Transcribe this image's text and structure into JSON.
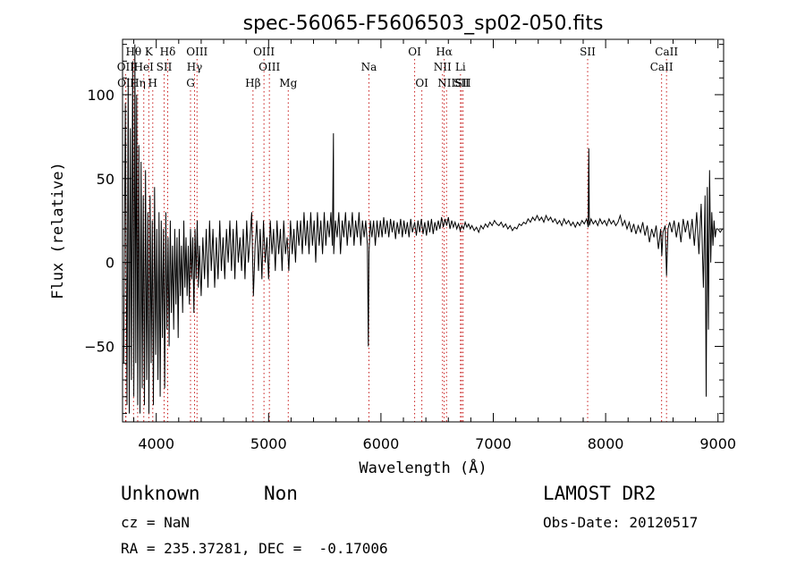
{
  "chart_data": {
    "type": "line",
    "title": "spec-56065-F5606503_sp02-050.fits",
    "xlabel": "Wavelength (Å)",
    "ylabel": "Flux (relative)",
    "xlim": [
      3700,
      9050
    ],
    "ylim": [
      -95,
      133
    ],
    "xticks": [
      4000,
      5000,
      6000,
      7000,
      8000,
      9000
    ],
    "yticks": [
      -50,
      0,
      50,
      100
    ],
    "grid": false,
    "line_color": "#000000",
    "marker_color": "#c81e1e",
    "lines": [
      {
        "label": "Hθ",
        "wavelength": 3798,
        "row": 0
      },
      {
        "label": "K",
        "wavelength": 3934,
        "row": 0
      },
      {
        "label": "Hδ",
        "wavelength": 4102,
        "row": 0
      },
      {
        "label": "OIII",
        "wavelength": 4363,
        "row": 0
      },
      {
        "label": "OIII",
        "wavelength": 4959,
        "row": 0
      },
      {
        "label": "OI",
        "wavelength": 6300,
        "row": 0
      },
      {
        "label": "Hα",
        "wavelength": 6563,
        "row": 0
      },
      {
        "label": "SII",
        "wavelength": 7840,
        "row": 0
      },
      {
        "label": "CaII",
        "wavelength": 8542,
        "row": 0
      },
      {
        "label": "OII",
        "wavelength": 3727,
        "row": 1
      },
      {
        "label": "HeI",
        "wavelength": 3889,
        "row": 1
      },
      {
        "label": "SII",
        "wavelength": 4070,
        "row": 1
      },
      {
        "label": "Hγ",
        "wavelength": 4341,
        "row": 1
      },
      {
        "label": "OIII",
        "wavelength": 5007,
        "row": 1
      },
      {
        "label": "Na",
        "wavelength": 5893,
        "row": 1
      },
      {
        "label": "NII",
        "wavelength": 6548,
        "row": 1
      },
      {
        "label": "Li",
        "wavelength": 6708,
        "row": 1
      },
      {
        "label": "CaII",
        "wavelength": 8498,
        "row": 1
      },
      {
        "label": "OII",
        "wavelength": 3730,
        "row": 2
      },
      {
        "label": "Hη",
        "wavelength": 3835,
        "row": 2
      },
      {
        "label": "H",
        "wavelength": 3969,
        "row": 2
      },
      {
        "label": "G",
        "wavelength": 4305,
        "row": 2
      },
      {
        "label": "Hβ",
        "wavelength": 4861,
        "row": 2
      },
      {
        "label": "Mg",
        "wavelength": 5175,
        "row": 2
      },
      {
        "label": "OI",
        "wavelength": 6364,
        "row": 2
      },
      {
        "label": "NII",
        "wavelength": 6584,
        "row": 2
      },
      {
        "label": "SII",
        "wavelength": 6717,
        "row": 2
      },
      {
        "label": "SII",
        "wavelength": 6731,
        "row": 2
      }
    ],
    "spectrum": [
      [
        3710,
        -60
      ],
      [
        3725,
        95
      ],
      [
        3740,
        -85
      ],
      [
        3750,
        110
      ],
      [
        3760,
        -90
      ],
      [
        3770,
        80
      ],
      [
        3780,
        -70
      ],
      [
        3790,
        120
      ],
      [
        3800,
        -80
      ],
      [
        3810,
        130
      ],
      [
        3818,
        -60
      ],
      [
        3826,
        100
      ],
      [
        3835,
        -85
      ],
      [
        3845,
        70
      ],
      [
        3855,
        -90
      ],
      [
        3865,
        60
      ],
      [
        3875,
        -75
      ],
      [
        3885,
        40
      ],
      [
        3895,
        -85
      ],
      [
        3905,
        55
      ],
      [
        3915,
        -70
      ],
      [
        3925,
        30
      ],
      [
        3935,
        -90
      ],
      [
        3945,
        40
      ],
      [
        3955,
        -60
      ],
      [
        3965,
        25
      ],
      [
        3975,
        -85
      ],
      [
        3985,
        45
      ],
      [
        3995,
        -55
      ],
      [
        4005,
        20
      ],
      [
        4015,
        -70
      ],
      [
        4025,
        30
      ],
      [
        4035,
        -80
      ],
      [
        4045,
        25
      ],
      [
        4055,
        -45
      ],
      [
        4065,
        20
      ],
      [
        4075,
        -75
      ],
      [
        4085,
        30
      ],
      [
        4095,
        -40
      ],
      [
        4105,
        15
      ],
      [
        4115,
        -50
      ],
      [
        4125,
        25
      ],
      [
        4135,
        -30
      ],
      [
        4145,
        10
      ],
      [
        4155,
        -40
      ],
      [
        4165,
        20
      ],
      [
        4175,
        -25
      ],
      [
        4185,
        15
      ],
      [
        4195,
        -45
      ],
      [
        4205,
        20
      ],
      [
        4215,
        -20
      ],
      [
        4225,
        10
      ],
      [
        4235,
        -30
      ],
      [
        4245,
        25
      ],
      [
        4255,
        -15
      ],
      [
        4265,
        15
      ],
      [
        4275,
        -20
      ],
      [
        4285,
        10
      ],
      [
        4295,
        -25
      ],
      [
        4305,
        20
      ],
      [
        4315,
        -10
      ],
      [
        4325,
        15
      ],
      [
        4335,
        -30
      ],
      [
        4345,
        20
      ],
      [
        4355,
        -10
      ],
      [
        4365,
        25
      ],
      [
        4375,
        -15
      ],
      [
        4385,
        10
      ],
      [
        4400,
        -20
      ],
      [
        4415,
        15
      ],
      [
        4430,
        -10
      ],
      [
        4445,
        20
      ],
      [
        4460,
        -15
      ],
      [
        4475,
        25
      ],
      [
        4490,
        -5
      ],
      [
        4505,
        20
      ],
      [
        4520,
        -15
      ],
      [
        4535,
        15
      ],
      [
        4550,
        -10
      ],
      [
        4565,
        25
      ],
      [
        4580,
        -5
      ],
      [
        4595,
        15
      ],
      [
        4610,
        -10
      ],
      [
        4625,
        20
      ],
      [
        4640,
        0
      ],
      [
        4655,
        25
      ],
      [
        4670,
        -5
      ],
      [
        4685,
        20
      ],
      [
        4700,
        -10
      ],
      [
        4715,
        25
      ],
      [
        4730,
        0
      ],
      [
        4745,
        15
      ],
      [
        4760,
        -5
      ],
      [
        4775,
        20
      ],
      [
        4790,
        -10
      ],
      [
        4805,
        25
      ],
      [
        4820,
        0
      ],
      [
        4835,
        15
      ],
      [
        4850,
        30
      ],
      [
        4865,
        -20
      ],
      [
        4880,
        10
      ],
      [
        4895,
        25
      ],
      [
        4910,
        -5
      ],
      [
        4925,
        20
      ],
      [
        4940,
        -10
      ],
      [
        4955,
        25
      ],
      [
        4970,
        0
      ],
      [
        4985,
        15
      ],
      [
        5000,
        -10
      ],
      [
        5015,
        25
      ],
      [
        5030,
        5
      ],
      [
        5045,
        20
      ],
      [
        5060,
        -5
      ],
      [
        5075,
        25
      ],
      [
        5090,
        5
      ],
      [
        5105,
        20
      ],
      [
        5120,
        -5
      ],
      [
        5135,
        25
      ],
      [
        5150,
        5
      ],
      [
        5165,
        15
      ],
      [
        5180,
        -5
      ],
      [
        5195,
        25
      ],
      [
        5210,
        5
      ],
      [
        5225,
        20
      ],
      [
        5240,
        0
      ],
      [
        5255,
        25
      ],
      [
        5270,
        10
      ],
      [
        5285,
        25
      ],
      [
        5300,
        5
      ],
      [
        5315,
        30
      ],
      [
        5330,
        10
      ],
      [
        5345,
        25
      ],
      [
        5360,
        5
      ],
      [
        5375,
        30
      ],
      [
        5390,
        10
      ],
      [
        5405,
        25
      ],
      [
        5420,
        0
      ],
      [
        5435,
        30
      ],
      [
        5450,
        10
      ],
      [
        5465,
        25
      ],
      [
        5480,
        5
      ],
      [
        5495,
        30
      ],
      [
        5510,
        10
      ],
      [
        5525,
        25
      ],
      [
        5540,
        15
      ],
      [
        5555,
        30
      ],
      [
        5568,
        10
      ],
      [
        5577,
        77
      ],
      [
        5580,
        5
      ],
      [
        5595,
        25
      ],
      [
        5610,
        15
      ],
      [
        5625,
        30
      ],
      [
        5640,
        5
      ],
      [
        5655,
        25
      ],
      [
        5670,
        15
      ],
      [
        5685,
        30
      ],
      [
        5700,
        10
      ],
      [
        5715,
        25
      ],
      [
        5730,
        15
      ],
      [
        5745,
        30
      ],
      [
        5760,
        10
      ],
      [
        5775,
        25
      ],
      [
        5790,
        15
      ],
      [
        5805,
        30
      ],
      [
        5820,
        10
      ],
      [
        5835,
        25
      ],
      [
        5850,
        15
      ],
      [
        5865,
        25
      ],
      [
        5880,
        10
      ],
      [
        5888,
        -50
      ],
      [
        5893,
        5
      ],
      [
        5905,
        25
      ],
      [
        5920,
        15
      ],
      [
        5935,
        25
      ],
      [
        5950,
        10
      ],
      [
        5965,
        25
      ],
      [
        5980,
        15
      ],
      [
        5995,
        25
      ],
      [
        6010,
        15
      ],
      [
        6025,
        27
      ],
      [
        6040,
        17
      ],
      [
        6055,
        25
      ],
      [
        6070,
        15
      ],
      [
        6085,
        26
      ],
      [
        6100,
        18
      ],
      [
        6115,
        25
      ],
      [
        6130,
        14
      ],
      [
        6145,
        24
      ],
      [
        6160,
        17
      ],
      [
        6175,
        26
      ],
      [
        6190,
        15
      ],
      [
        6205,
        25
      ],
      [
        6220,
        17
      ],
      [
        6235,
        24
      ],
      [
        6250,
        15
      ],
      [
        6265,
        26
      ],
      [
        6280,
        18
      ],
      [
        6300,
        24
      ],
      [
        6315,
        16
      ],
      [
        6330,
        25
      ],
      [
        6345,
        18
      ],
      [
        6360,
        26
      ],
      [
        6375,
        17
      ],
      [
        6390,
        24
      ],
      [
        6405,
        16
      ],
      [
        6420,
        25
      ],
      [
        6435,
        18
      ],
      [
        6450,
        26
      ],
      [
        6465,
        17
      ],
      [
        6480,
        24
      ],
      [
        6495,
        19
      ],
      [
        6510,
        25
      ],
      [
        6525,
        20
      ],
      [
        6540,
        27
      ],
      [
        6555,
        21
      ],
      [
        6570,
        26
      ],
      [
        6585,
        22
      ],
      [
        6600,
        27
      ],
      [
        6615,
        20
      ],
      [
        6630,
        25
      ],
      [
        6645,
        21
      ],
      [
        6660,
        24
      ],
      [
        6675,
        20
      ],
      [
        6690,
        23
      ],
      [
        6705,
        19
      ],
      [
        6720,
        22
      ],
      [
        6735,
        20
      ],
      [
        6750,
        24
      ],
      [
        6765,
        21
      ],
      [
        6780,
        23
      ],
      [
        6795,
        20
      ],
      [
        6810,
        22
      ],
      [
        6830,
        19
      ],
      [
        6850,
        21
      ],
      [
        6870,
        18
      ],
      [
        6890,
        22
      ],
      [
        6910,
        20
      ],
      [
        6930,
        23
      ],
      [
        6950,
        21
      ],
      [
        6970,
        24
      ],
      [
        6990,
        22
      ],
      [
        7010,
        25
      ],
      [
        7030,
        23
      ],
      [
        7050,
        22
      ],
      [
        7070,
        24
      ],
      [
        7090,
        21
      ],
      [
        7110,
        23
      ],
      [
        7130,
        20
      ],
      [
        7150,
        22
      ],
      [
        7170,
        19
      ],
      [
        7190,
        21
      ],
      [
        7210,
        20
      ],
      [
        7230,
        23
      ],
      [
        7250,
        22
      ],
      [
        7270,
        24
      ],
      [
        7290,
        23
      ],
      [
        7310,
        26
      ],
      [
        7330,
        24
      ],
      [
        7350,
        27
      ],
      [
        7370,
        25
      ],
      [
        7390,
        28
      ],
      [
        7410,
        25
      ],
      [
        7430,
        27
      ],
      [
        7450,
        24
      ],
      [
        7470,
        28
      ],
      [
        7490,
        25
      ],
      [
        7510,
        27
      ],
      [
        7530,
        24
      ],
      [
        7550,
        26
      ],
      [
        7570,
        23
      ],
      [
        7590,
        25
      ],
      [
        7610,
        22
      ],
      [
        7630,
        26
      ],
      [
        7650,
        23
      ],
      [
        7670,
        25
      ],
      [
        7690,
        22
      ],
      [
        7710,
        24
      ],
      [
        7730,
        21
      ],
      [
        7750,
        24
      ],
      [
        7770,
        22
      ],
      [
        7790,
        25
      ],
      [
        7810,
        23
      ],
      [
        7830,
        26
      ],
      [
        7845,
        21
      ],
      [
        7850,
        68
      ],
      [
        7855,
        22
      ],
      [
        7870,
        26
      ],
      [
        7890,
        23
      ],
      [
        7910,
        25
      ],
      [
        7930,
        22
      ],
      [
        7950,
        26
      ],
      [
        7970,
        23
      ],
      [
        7990,
        25
      ],
      [
        8010,
        22
      ],
      [
        8030,
        26
      ],
      [
        8050,
        23
      ],
      [
        8070,
        25
      ],
      [
        8090,
        22
      ],
      [
        8110,
        24
      ],
      [
        8130,
        28
      ],
      [
        8150,
        22
      ],
      [
        8170,
        25
      ],
      [
        8190,
        20
      ],
      [
        8210,
        24
      ],
      [
        8230,
        18
      ],
      [
        8250,
        23
      ],
      [
        8270,
        17
      ],
      [
        8290,
        22
      ],
      [
        8310,
        18
      ],
      [
        8330,
        24
      ],
      [
        8350,
        16
      ],
      [
        8370,
        22
      ],
      [
        8390,
        12
      ],
      [
        8410,
        20
      ],
      [
        8430,
        15
      ],
      [
        8450,
        22
      ],
      [
        8470,
        8
      ],
      [
        8490,
        20
      ],
      [
        8500,
        4
      ],
      [
        8510,
        18
      ],
      [
        8530,
        22
      ],
      [
        8542,
        -8
      ],
      [
        8555,
        20
      ],
      [
        8570,
        24
      ],
      [
        8590,
        18
      ],
      [
        8610,
        25
      ],
      [
        8630,
        15
      ],
      [
        8650,
        24
      ],
      [
        8670,
        12
      ],
      [
        8690,
        26
      ],
      [
        8710,
        18
      ],
      [
        8730,
        25
      ],
      [
        8750,
        14
      ],
      [
        8770,
        26
      ],
      [
        8790,
        10
      ],
      [
        8810,
        30
      ],
      [
        8830,
        5
      ],
      [
        8850,
        35
      ],
      [
        8870,
        -15
      ],
      [
        8885,
        40
      ],
      [
        8895,
        -80
      ],
      [
        8905,
        45
      ],
      [
        8915,
        -40
      ],
      [
        8925,
        55
      ],
      [
        8935,
        0
      ],
      [
        8945,
        30
      ],
      [
        8955,
        10
      ],
      [
        8965,
        25
      ],
      [
        8975,
        15
      ],
      [
        8985,
        20
      ],
      [
        9000,
        20
      ],
      [
        9020,
        18
      ],
      [
        9040,
        20
      ]
    ]
  },
  "footer": {
    "object_type": "Unknown",
    "subclass": "Non",
    "survey": "LAMOST DR2",
    "cz": "cz = NaN",
    "obs_date": "Obs-Date: 20120517",
    "coords": "RA = 235.37281, DEC =  -0.17006"
  }
}
